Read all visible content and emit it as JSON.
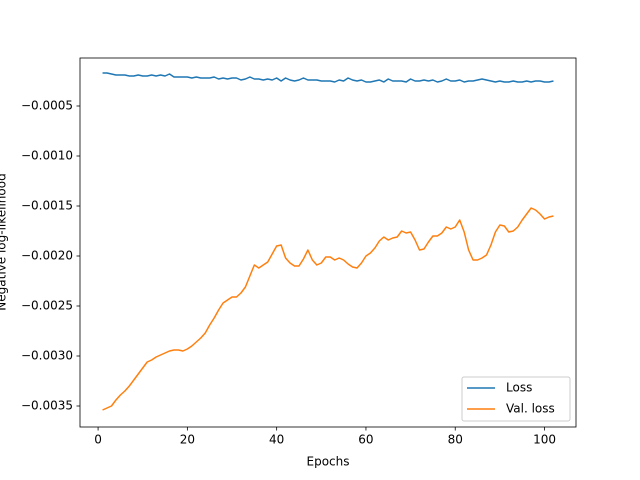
{
  "chart_data": {
    "type": "line",
    "x_label": "Epochs",
    "y_label": "Negative log-likelihood",
    "x": [
      1,
      2,
      3,
      4,
      5,
      6,
      7,
      8,
      9,
      10,
      11,
      12,
      13,
      14,
      15,
      16,
      17,
      18,
      19,
      20,
      21,
      22,
      23,
      24,
      25,
      26,
      27,
      28,
      29,
      30,
      31,
      32,
      33,
      34,
      35,
      36,
      37,
      38,
      39,
      40,
      41,
      42,
      43,
      44,
      45,
      46,
      47,
      48,
      49,
      50,
      51,
      52,
      53,
      54,
      55,
      56,
      57,
      58,
      59,
      60,
      61,
      62,
      63,
      64,
      65,
      66,
      67,
      68,
      69,
      70,
      71,
      72,
      73,
      74,
      75,
      76,
      77,
      78,
      79,
      80,
      81,
      82,
      83,
      84,
      85,
      86,
      87,
      88,
      89,
      90,
      91,
      92,
      93,
      94,
      95,
      96,
      97,
      98,
      99,
      100,
      101,
      102
    ],
    "series": [
      {
        "name": "Loss",
        "color": "#1f77b4",
        "values": [
          -0.00017,
          -0.00017,
          -0.00018,
          -0.00019,
          -0.00019,
          -0.00019,
          -0.0002,
          -0.0002,
          -0.00019,
          -0.0002,
          -0.0002,
          -0.00019,
          -0.0002,
          -0.00019,
          -0.0002,
          -0.00018,
          -0.00021,
          -0.00021,
          -0.00021,
          -0.00021,
          -0.00022,
          -0.00021,
          -0.00022,
          -0.00022,
          -0.00022,
          -0.00021,
          -0.00023,
          -0.00022,
          -0.00023,
          -0.00022,
          -0.00022,
          -0.00024,
          -0.00023,
          -0.00021,
          -0.00023,
          -0.00023,
          -0.00024,
          -0.00023,
          -0.00024,
          -0.00022,
          -0.00025,
          -0.00022,
          -0.00024,
          -0.00025,
          -0.00024,
          -0.00022,
          -0.00024,
          -0.00024,
          -0.00024,
          -0.00025,
          -0.00025,
          -0.00025,
          -0.00026,
          -0.00024,
          -0.00025,
          -0.00022,
          -0.00024,
          -0.00025,
          -0.00024,
          -0.00026,
          -0.00026,
          -0.00025,
          -0.00024,
          -0.00026,
          -0.00023,
          -0.00025,
          -0.00025,
          -0.00025,
          -0.00026,
          -0.00023,
          -0.00025,
          -0.00025,
          -0.00024,
          -0.00025,
          -0.00024,
          -0.00026,
          -0.00025,
          -0.00023,
          -0.00025,
          -0.00025,
          -0.00024,
          -0.00026,
          -0.00025,
          -0.00025,
          -0.00024,
          -0.00023,
          -0.00024,
          -0.00025,
          -0.00026,
          -0.00025,
          -0.00026,
          -0.00026,
          -0.00025,
          -0.00026,
          -0.00026,
          -0.00025,
          -0.00026,
          -0.00025,
          -0.00025,
          -0.00026,
          -0.00026,
          -0.00025
        ]
      },
      {
        "name": "Val. loss",
        "color": "#ff7f0e",
        "values": [
          -0.00354,
          -0.00352,
          -0.0035,
          -0.00344,
          -0.00339,
          -0.00335,
          -0.0033,
          -0.00324,
          -0.00318,
          -0.00312,
          -0.00306,
          -0.00304,
          -0.00301,
          -0.00299,
          -0.00297,
          -0.00295,
          -0.00294,
          -0.00294,
          -0.00295,
          -0.00293,
          -0.0029,
          -0.00286,
          -0.00282,
          -0.00277,
          -0.00269,
          -0.00262,
          -0.00254,
          -0.00247,
          -0.00244,
          -0.00241,
          -0.00241,
          -0.00237,
          -0.00231,
          -0.0022,
          -0.00209,
          -0.00212,
          -0.00209,
          -0.00206,
          -0.00198,
          -0.0019,
          -0.00189,
          -0.00202,
          -0.00207,
          -0.0021,
          -0.0021,
          -0.00203,
          -0.00194,
          -0.00204,
          -0.00209,
          -0.00207,
          -0.00201,
          -0.00201,
          -0.00204,
          -0.00202,
          -0.00204,
          -0.00208,
          -0.00211,
          -0.00212,
          -0.00207,
          -0.002,
          -0.00197,
          -0.00192,
          -0.00185,
          -0.00181,
          -0.00184,
          -0.00182,
          -0.00181,
          -0.00175,
          -0.00177,
          -0.00176,
          -0.00184,
          -0.00194,
          -0.00193,
          -0.00186,
          -0.0018,
          -0.0018,
          -0.00177,
          -0.00171,
          -0.00173,
          -0.00171,
          -0.00164,
          -0.00176,
          -0.00194,
          -0.00204,
          -0.00204,
          -0.00202,
          -0.00199,
          -0.00189,
          -0.00176,
          -0.00169,
          -0.0017,
          -0.00176,
          -0.00175,
          -0.00171,
          -0.00164,
          -0.00158,
          -0.00152,
          -0.00154,
          -0.00158,
          -0.00163,
          -0.00161,
          -0.0016
        ]
      }
    ],
    "xlim": [
      -4.05,
      107.05
    ],
    "ylim": [
      -0.00371,
      -2e-05
    ],
    "xticks": [
      0,
      20,
      40,
      60,
      80,
      100
    ],
    "yticks": [
      {
        "value": -0.0035,
        "label": "−0.0035"
      },
      {
        "value": -0.003,
        "label": "−0.0030"
      },
      {
        "value": -0.0025,
        "label": "−0.0025"
      },
      {
        "value": -0.002,
        "label": "−0.0020"
      },
      {
        "value": -0.0015,
        "label": "−0.0015"
      },
      {
        "value": -0.001,
        "label": "−0.0010"
      },
      {
        "value": -0.0005,
        "label": "−0.0005"
      }
    ],
    "legend": "lower right",
    "grid": false
  }
}
